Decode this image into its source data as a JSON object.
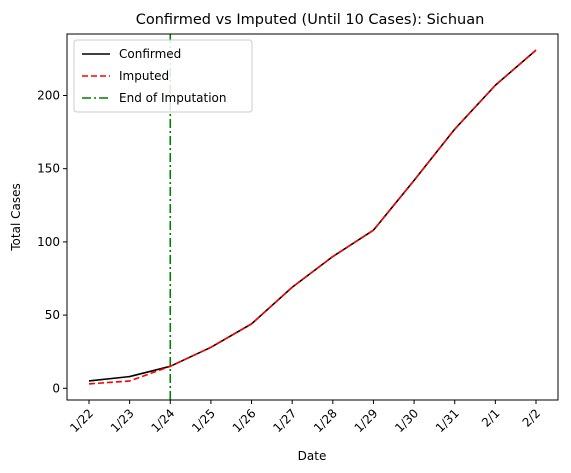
{
  "chart_data": {
    "type": "line",
    "title": "Confirmed vs Imputed (Until 10 Cases): Sichuan",
    "xlabel": "Date",
    "ylabel": "Total Cases",
    "categories": [
      "1/22",
      "1/23",
      "1/24",
      "1/25",
      "1/26",
      "1/27",
      "1/28",
      "1/29",
      "1/30",
      "1/31",
      "2/1",
      "2/2"
    ],
    "yticks": [
      0,
      50,
      100,
      150,
      200
    ],
    "ylim": [
      -8,
      242
    ],
    "grid": false,
    "legend_position": "top-left",
    "series": [
      {
        "name": "Confirmed",
        "values": [
          5,
          8,
          15,
          28,
          44,
          69,
          90,
          108,
          142,
          177,
          207,
          231
        ],
        "color": "#000000",
        "dash": "solid"
      },
      {
        "name": "Imputed",
        "values": [
          3,
          5,
          15,
          28,
          44,
          69,
          90,
          108,
          142,
          177,
          207,
          231
        ],
        "color": "#ff0000",
        "dash": "dashed"
      }
    ],
    "vlines": [
      {
        "name": "End of Imputation",
        "x": "1/24",
        "color": "#008000",
        "dash": "dashdot"
      }
    ]
  }
}
